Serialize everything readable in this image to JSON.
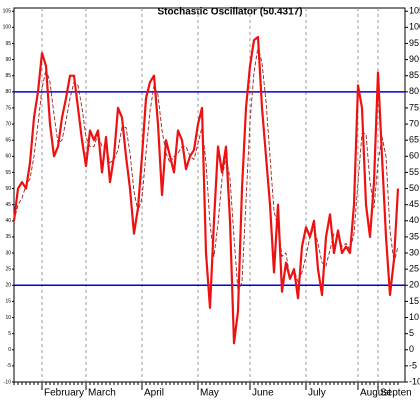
{
  "chart_data": {
    "type": "line",
    "title": "Stochastic Oscillator (50.4317)",
    "categories": [
      null,
      null,
      null,
      null,
      null,
      null,
      null,
      "February",
      null,
      null,
      null,
      null,
      null,
      null,
      null,
      null,
      null,
      null,
      "March",
      null,
      null,
      null,
      null,
      null,
      null,
      null,
      null,
      null,
      null,
      null,
      null,
      null,
      "April",
      null,
      null,
      null,
      null,
      null,
      null,
      null,
      null,
      null,
      null,
      null,
      null,
      null,
      "May",
      null,
      null,
      null,
      null,
      null,
      null,
      null,
      null,
      null,
      null,
      null,
      null,
      "June",
      null,
      null,
      null,
      null,
      null,
      null,
      null,
      null,
      null,
      null,
      null,
      null,
      null,
      "July",
      null,
      null,
      null,
      null,
      null,
      null,
      null,
      null,
      null,
      null,
      null,
      null,
      "August",
      null,
      null,
      null,
      null,
      "Septen",
      null,
      null,
      null,
      null,
      null
    ],
    "series": [
      {
        "color": "#ee1111",
        "values": [
          40,
          50,
          52,
          50,
          58,
          72,
          80,
          92,
          88,
          70,
          60,
          63,
          72,
          78,
          85,
          85,
          75,
          65,
          57,
          68,
          65,
          68,
          55,
          66,
          52,
          60,
          75,
          72,
          60,
          50,
          36,
          44,
          60,
          78,
          83,
          85,
          70,
          48,
          65,
          60,
          55,
          68,
          65,
          56,
          60,
          62,
          70,
          75,
          30,
          13,
          40,
          63,
          55,
          63,
          40,
          2,
          12,
          50,
          75,
          88,
          96,
          97,
          75,
          60,
          45,
          24,
          45,
          18,
          27,
          22,
          25,
          16,
          32,
          38,
          35,
          40,
          25,
          17,
          35,
          42,
          30,
          37,
          30,
          32,
          30,
          45,
          82,
          75,
          45,
          35,
          52,
          86,
          60,
          35,
          17,
          28,
          50
        ]
      },
      {
        "color": "#992222",
        "dashed": true,
        "values": [
          40,
          45,
          47,
          51,
          53,
          60,
          70,
          81,
          87,
          83,
          73,
          64,
          65,
          71,
          78,
          83,
          82,
          75,
          66,
          63,
          63,
          67,
          63,
          63,
          58,
          59,
          62,
          69,
          69,
          61,
          49,
          43,
          47,
          61,
          74,
          82,
          79,
          68,
          61,
          58,
          60,
          61,
          63,
          63,
          60,
          59,
          64,
          69,
          58,
          39,
          29,
          39,
          53,
          60,
          53,
          35,
          18,
          21,
          46,
          71,
          86,
          94,
          89,
          77,
          60,
          43,
          38,
          29,
          30,
          22,
          25,
          21,
          24,
          29,
          35,
          38,
          33,
          27,
          26,
          31,
          36,
          36,
          32,
          33,
          31,
          36,
          52,
          67,
          67,
          52,
          44,
          58,
          66,
          60,
          37,
          27,
          32
        ]
      }
    ],
    "hlines": [
      80,
      20
    ],
    "hline_color": "#0000dd",
    "ylim": [
      -10,
      106
    ],
    "yticks": [
      -10,
      -5,
      0,
      5,
      10,
      15,
      20,
      25,
      30,
      35,
      40,
      45,
      50,
      55,
      60,
      65,
      70,
      75,
      80,
      85,
      90,
      95,
      100,
      105
    ],
    "grid": true
  }
}
